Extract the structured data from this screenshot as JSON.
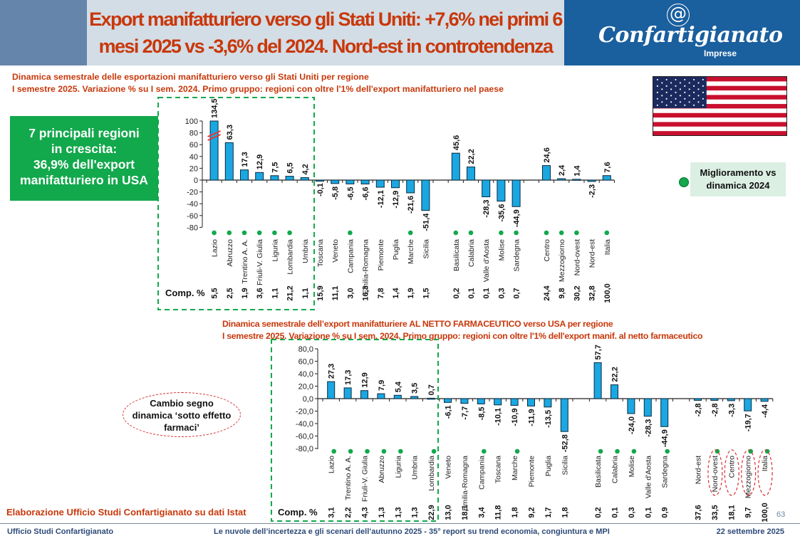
{
  "header": {
    "title_line1": "Export manifatturiero verso gli Stati Uniti: +7,6% nei primi 6",
    "title_line2": "mesi 2025 vs -3,6% del 2024. Nord-est in controtendenza",
    "logo_symbol": "@",
    "logo_name": "Confartigianato",
    "logo_sub": "Imprese"
  },
  "colors": {
    "title": "#c8380b",
    "bar": "#1aa7e2",
    "bar_outline": "#0d2b3e",
    "improvement_dot": "#12a84c",
    "group_border": "#12a84c",
    "highlight_ellipse": "#d63031",
    "logo_bg": "#1a5f9e"
  },
  "annotations": {
    "green_box_lines": [
      "7 principali regioni",
      "in crescita:",
      "36,9% dell'export",
      "manifatturiero in USA"
    ],
    "legend_label_lines": [
      "Miglioramento vs",
      "dinamica 2024"
    ],
    "callout_lines": [
      "Cambio segno",
      "dinamica ‘sotto effetto",
      "farmaci’"
    ],
    "flag_icon": "usa-flag-icon"
  },
  "chart_data": [
    {
      "type": "bar",
      "title": "Dinamica semestrale delle esportazioni manifatturiero verso gli Stati Uniti per regione",
      "subtitle": "I semestre 2025. Variazione % su I sem. 2024. Primo gruppo: regioni con oltre l'1% dell'export manifatturiero nel paese",
      "xlabel": "",
      "ylabel": "",
      "ylim": [
        -80,
        100
      ],
      "yticks": [
        "100",
        "80",
        "60",
        "40",
        "20",
        "0",
        "-20",
        "-40",
        "-60",
        "-80"
      ],
      "ytick_values": [
        100,
        80,
        60,
        40,
        20,
        0,
        -20,
        -40,
        -60,
        -80
      ],
      "axis_break_on": "Lazio",
      "grid": false,
      "comp_header": "Comp. %",
      "categories": [
        "Lazio",
        "Abruzzo",
        "Trentino A. A.",
        "Friuli-V. Giulia",
        "Liguria",
        "Lombardia",
        "Umbria",
        "Toscana",
        "Veneto",
        "Campania",
        "Emilia-Romagna",
        "Piemonte",
        "Puglia",
        "Marche",
        "Sicilia",
        "",
        "Basilicata",
        "Calabria",
        "Valle d'Aosta",
        "Molise",
        "Sardegna",
        "",
        "Centro",
        "Mezzogiorno",
        "Nord-ovest",
        "Nord-est",
        "Italia"
      ],
      "values": [
        134.5,
        63.3,
        17.3,
        12.9,
        7.5,
        6.5,
        4.2,
        -0.1,
        -5.8,
        -6.5,
        -6.6,
        -12.1,
        -12.9,
        -21.6,
        -51.4,
        null,
        45.6,
        22.2,
        -28.3,
        -35.6,
        -44.9,
        null,
        24.6,
        2.4,
        1.4,
        -2.3,
        7.6
      ],
      "value_labels": [
        "134,5",
        "63,3",
        "17,3",
        "12,9",
        "7,5",
        "6,5",
        "4,2",
        "-0,1",
        "-5,8",
        "-6,5",
        "-6,6",
        "-12,1",
        "-12,9",
        "-21,6",
        "-51,4",
        "",
        "45,6",
        "22,2",
        "-28,3",
        "-35,6",
        "-44,9",
        "",
        "24,6",
        "2,4",
        "1,4",
        "-2,3",
        "7,6"
      ],
      "comp_pct": [
        "5,5",
        "2,5",
        "1,9",
        "3,6",
        "1,1",
        "21,2",
        "1,1",
        "15,9",
        "11,1",
        "3,0",
        "16,3",
        "7,8",
        "1,4",
        "1,9",
        "1,5",
        "",
        "0,2",
        "0,1",
        "0,1",
        "0,3",
        "0,7",
        "",
        "24,4",
        "9,8",
        "30,2",
        "32,8",
        "100,0"
      ],
      "improved": [
        true,
        true,
        true,
        true,
        true,
        true,
        false,
        false,
        false,
        true,
        false,
        false,
        false,
        true,
        false,
        false,
        true,
        true,
        false,
        true,
        true,
        false,
        true,
        true,
        true,
        false,
        true
      ],
      "highlight_group_size": 7,
      "highlighted_circles": []
    },
    {
      "type": "bar",
      "title": "Dinamica semestrale dell’export manifatturiere AL NETTO FARMACEUTICO verso USA per regione",
      "subtitle": "I semestre 2025. Variazione % su I sem. 2024. Primo gruppo: regioni con oltre l'1% dell'export manif. al netto farmaceutico",
      "xlabel": "",
      "ylabel": "",
      "ylim": [
        -80,
        80
      ],
      "yticks": [
        "80,0",
        "60,0",
        "40,0",
        "20,0",
        "0,0",
        "-20,0",
        "-40,0",
        "-60,0",
        "-80,0"
      ],
      "ytick_values": [
        80,
        60,
        40,
        20,
        0,
        -20,
        -40,
        -60,
        -80
      ],
      "grid": false,
      "comp_header": "Comp. %",
      "categories": [
        "Lazio",
        "Trentino A. A.",
        "Friuli-V. Giulia",
        "Abruzzo",
        "Liguria",
        "Umbria",
        "Lombardia",
        "Veneto",
        "Emilia-Romagna",
        "Campania",
        "Toscana",
        "Marche",
        "Piemonte",
        "Puglia",
        "Sicilia",
        "",
        "Basilicata",
        "Calabria",
        "Molise",
        "Valle d'Aosta",
        "Sardegna",
        "",
        "Nord-est",
        "Nord-ovest",
        "Centro",
        "Mezzogiorno",
        "Italia"
      ],
      "values": [
        27.3,
        17.3,
        12.9,
        7.9,
        5.4,
        3.5,
        0.7,
        -6.1,
        -7.7,
        -8.5,
        -10.1,
        -10.9,
        -11.9,
        -13.5,
        -52.8,
        null,
        57.7,
        22.2,
        -24.0,
        -28.3,
        -44.9,
        null,
        -2.8,
        -2.8,
        -3.3,
        -19.7,
        -4.4
      ],
      "value_labels": [
        "27,3",
        "17,3",
        "12,9",
        "7,9",
        "5,4",
        "3,5",
        "0,7",
        "-6,1",
        "-7,7",
        "-8,5",
        "-10,1",
        "-10,9",
        "-11,9",
        "-13,5",
        "-52,8",
        "",
        "57,7",
        "22,2",
        "-24,0",
        "-28,3",
        "-44,9",
        "",
        "-2,8",
        "-2,8",
        "-3,3",
        "-19,7",
        "-4,4"
      ],
      "comp_pct": [
        "3,1",
        "2,2",
        "4,3",
        "1,3",
        "1,3",
        "1,3",
        "22,9",
        "13,0",
        "18,1",
        "3,4",
        "11,8",
        "1,8",
        "9,2",
        "1,7",
        "1,8",
        "",
        "0,2",
        "0,1",
        "0,3",
        "0,1",
        "0,9",
        "",
        "37,6",
        "33,5",
        "18,1",
        "9,7",
        "100,0"
      ],
      "improved": [
        true,
        true,
        true,
        true,
        true,
        false,
        true,
        false,
        false,
        true,
        false,
        true,
        false,
        false,
        false,
        false,
        true,
        true,
        true,
        false,
        true,
        false,
        false,
        true,
        false,
        true,
        true
      ],
      "highlight_group_size": 7,
      "highlighted_circles": [
        "Nord-ovest",
        "Centro",
        "Mezzogiorno",
        "Italia"
      ]
    }
  ],
  "source": "Elaborazione Ufficio Studi Confartigianato su dati Istat",
  "page_number": "63",
  "footer": {
    "left": "Ufficio Studi Confartigianato",
    "center": "Le nuvole dell’incertezza e gli scenari dell’autunno 2025  - 35° report su trend economia, congiuntura e MPI",
    "right": "22 settembre 2025"
  }
}
